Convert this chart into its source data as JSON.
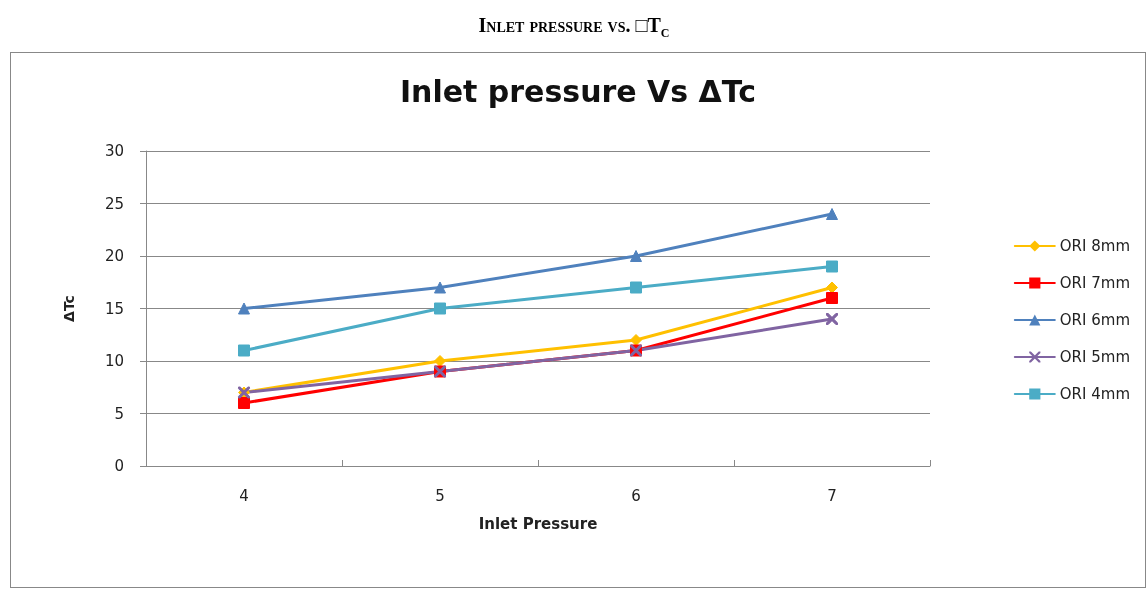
{
  "chart_data": {
    "type": "line",
    "title": "Inlet pressure vs. □T$_{c}$",
    "subtitle": "Inlet pressure Vs ΔTc",
    "xlabel": "Inlet Pressure",
    "ylabel": "ΔTc",
    "categories": [
      "4",
      "5",
      "6",
      "7"
    ],
    "series": [
      {
        "name": "ORI 8mm",
        "color": "#ffc000",
        "marker": "diamond",
        "values": [
          7,
          10,
          12,
          17
        ]
      },
      {
        "name": "ORI 7mm",
        "color": "#ff0000",
        "marker": "square",
        "values": [
          6,
          9,
          11,
          16
        ]
      },
      {
        "name": "ORI 6mm",
        "color": "#4f81bd",
        "marker": "triangle",
        "values": [
          15,
          17,
          20,
          24
        ]
      },
      {
        "name": "ORI 5mm",
        "color": "#8064a2",
        "marker": "cross",
        "values": [
          7,
          9,
          11,
          14
        ]
      },
      {
        "name": "ORI 4mm",
        "color": "#4bacc6",
        "marker": "square",
        "values": [
          11,
          15,
          17,
          19
        ]
      }
    ],
    "ylim": [
      0,
      30
    ],
    "yticks": [
      0,
      5,
      10,
      15,
      20,
      25,
      30
    ],
    "grid": "y",
    "legend": "right",
    "line_style": "solid"
  }
}
